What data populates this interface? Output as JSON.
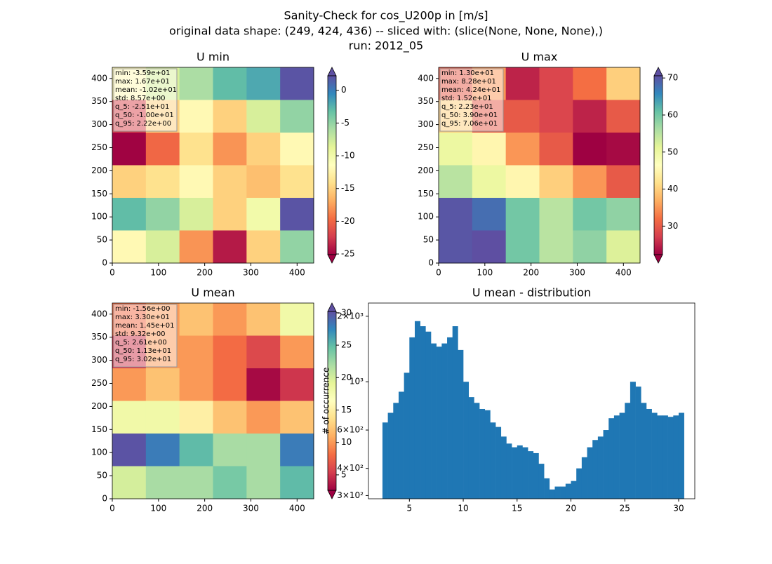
{
  "figure": {
    "title": [
      "Sanity-Check for cos_U200p in [m/s]",
      "original data shape: (249, 424, 436) -- sliced with: (slice(None, None, None),)",
      "run: 2012_05"
    ]
  },
  "colormap": [
    "#9e0142",
    "#d53e4f",
    "#f46d43",
    "#fdae61",
    "#fee08b",
    "#ffffbf",
    "#e6f598",
    "#abdda4",
    "#66c2a5",
    "#3288bd",
    "#5e4fa2"
  ],
  "chart_data": [
    {
      "type": "heatmap",
      "title": "U min",
      "xlim": [
        0,
        436
      ],
      "ylim": [
        0,
        424
      ],
      "xticks": [
        0,
        100,
        200,
        300,
        400
      ],
      "yticks": [
        0,
        50,
        100,
        150,
        200,
        250,
        300,
        350,
        400
      ],
      "clim": [
        -25.1,
        2.22
      ],
      "cticks": [
        -25,
        -20,
        -15,
        -10,
        -5,
        0
      ],
      "stats": [
        "min: -3.59e+01",
        "max: 1.67e+01",
        "mean: -1.02e+01",
        "std: 8.57e+00",
        "q_5: -2.51e+01",
        "q_50: -1.00e+01",
        "q_95: 2.22e+00"
      ],
      "z": [
        [
          -12,
          -8,
          -6,
          -3,
          -2,
          2
        ],
        [
          -22,
          -15,
          -12,
          -15,
          -8,
          -5
        ],
        [
          -25,
          -20,
          -14,
          -18,
          -15,
          -12
        ],
        [
          -15,
          -14,
          -12,
          -15,
          -16,
          -14
        ],
        [
          -3,
          -5,
          -8,
          -15,
          -10,
          2
        ],
        [
          -12,
          -8,
          -18,
          -24,
          -15,
          -5
        ]
      ]
    },
    {
      "type": "heatmap",
      "title": "U max",
      "xlim": [
        0,
        436
      ],
      "ylim": [
        0,
        424
      ],
      "xticks": [
        0,
        100,
        200,
        300,
        400
      ],
      "yticks": [
        0,
        50,
        100,
        150,
        200,
        250,
        300,
        350,
        400
      ],
      "clim": [
        22.3,
        70.6
      ],
      "cticks": [
        30,
        40,
        50,
        60,
        70
      ],
      "stats": [
        "min: 1.30e+01",
        "max: 8.28e+01",
        "mean: 4.24e+01",
        "std: 1.52e+01",
        "q_5: 2.23e+01",
        "q_50: 3.90e+01",
        "q_95: 7.06e+01"
      ],
      "z": [
        [
          30,
          35,
          25,
          28,
          32,
          40
        ],
        [
          40,
          30,
          30,
          28,
          25,
          30
        ],
        [
          50,
          45,
          35,
          30,
          22,
          23
        ],
        [
          55,
          50,
          45,
          40,
          35,
          30
        ],
        [
          70,
          68,
          60,
          55,
          60,
          58
        ],
        [
          70,
          72,
          60,
          55,
          58,
          52
        ]
      ]
    },
    {
      "type": "heatmap",
      "title": "U mean",
      "xlim": [
        0,
        436
      ],
      "ylim": [
        0,
        424
      ],
      "xticks": [
        0,
        100,
        200,
        300,
        400
      ],
      "yticks": [
        0,
        50,
        100,
        150,
        200,
        250,
        300,
        350,
        400
      ],
      "clim": [
        2.61,
        30.2
      ],
      "cticks": [
        5,
        10,
        15,
        20,
        25,
        30
      ],
      "stats": [
        "min: -1.56e+00",
        "max: 3.30e+01",
        "mean: 1.45e+01",
        "std: 9.32e+00",
        "q_5: 2.61e+00",
        "q_50: 1.13e+01",
        "q_95: 3.02e+01"
      ],
      "z": [
        [
          8,
          10,
          12,
          10,
          12,
          18
        ],
        [
          5,
          10,
          10,
          8,
          6,
          10
        ],
        [
          10,
          12,
          10,
          8,
          3,
          5
        ],
        [
          18,
          18,
          15,
          12,
          10,
          12
        ],
        [
          30,
          28,
          25,
          22,
          22,
          28
        ],
        [
          20,
          22,
          22,
          24,
          22,
          25
        ]
      ]
    },
    {
      "type": "histogram",
      "title": "U mean - distribution",
      "y_label": "# of occurrence",
      "color": "#1f77b4",
      "log_y": true,
      "xlim": [
        1.2,
        31.5
      ],
      "ylim": [
        290,
        2300
      ],
      "xticks": [
        5,
        10,
        15,
        20,
        25,
        30
      ],
      "yticks": [
        {
          "value": 300,
          "label": "3×10²"
        },
        {
          "value": 400,
          "label": "4×10²"
        },
        {
          "value": 600,
          "label": "6×10²"
        },
        {
          "value": 1000,
          "label": "10³"
        },
        {
          "value": 2000,
          "label": "2×10³"
        }
      ],
      "bins": [
        2.5,
        3,
        3.5,
        4,
        4.5,
        5,
        5.5,
        6,
        6.5,
        7,
        7.5,
        8,
        8.5,
        9,
        9.5,
        10,
        10.5,
        11,
        11.5,
        12,
        12.5,
        13,
        13.5,
        14,
        14.5,
        15,
        15.5,
        16,
        16.5,
        17,
        17.5,
        18,
        18.5,
        19,
        19.5,
        20,
        20.5,
        21,
        21.5,
        22,
        22.5,
        23,
        23.5,
        24,
        24.5,
        25,
        25.5,
        26,
        26.5,
        27,
        27.5,
        28,
        28.5,
        29,
        29.5,
        30,
        30.5
      ],
      "counts": [
        650,
        720,
        800,
        900,
        1100,
        1600,
        1900,
        1800,
        1700,
        1500,
        1450,
        1500,
        1600,
        1800,
        1400,
        1000,
        850,
        800,
        750,
        740,
        650,
        620,
        560,
        520,
        500,
        510,
        500,
        480,
        470,
        420,
        360,
        320,
        330,
        330,
        340,
        350,
        400,
        450,
        500,
        540,
        560,
        600,
        680,
        700,
        720,
        800,
        1000,
        950,
        800,
        750,
        720,
        700,
        700,
        690,
        700,
        720
      ]
    }
  ]
}
